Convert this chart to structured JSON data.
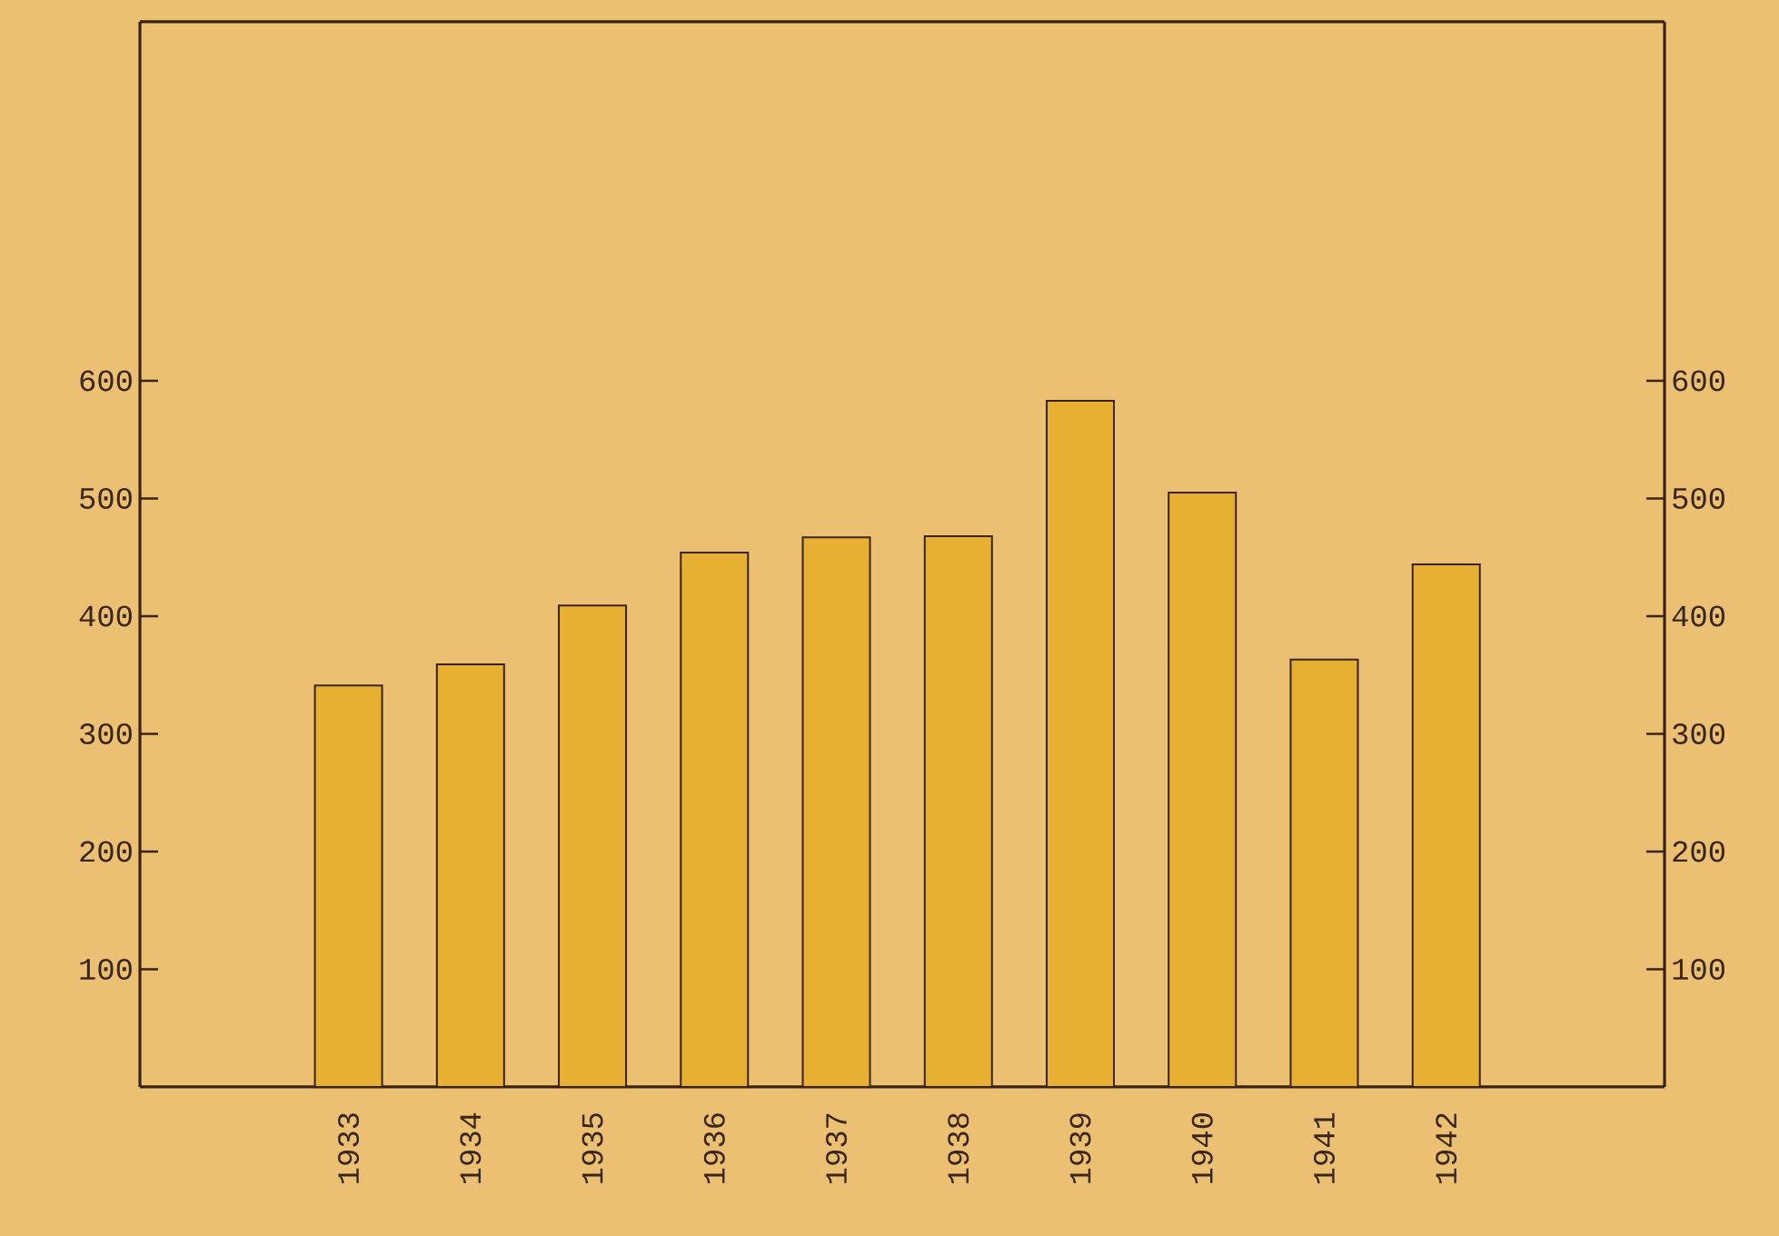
{
  "chart_data": {
    "type": "bar",
    "categories": [
      "1933",
      "1934",
      "1935",
      "1936",
      "1937",
      "1938",
      "1939",
      "1940",
      "1941",
      "1942"
    ],
    "values": [
      341,
      359,
      409,
      454,
      467,
      468,
      583,
      505,
      363,
      444
    ],
    "color": "#e8b032",
    "ylim": [
      0,
      905
    ],
    "yticks": [
      100,
      200,
      300,
      400,
      500,
      600
    ],
    "y2lim": [
      0,
      905
    ],
    "y2ticks": [
      100,
      200,
      300,
      400,
      500,
      600
    ]
  }
}
